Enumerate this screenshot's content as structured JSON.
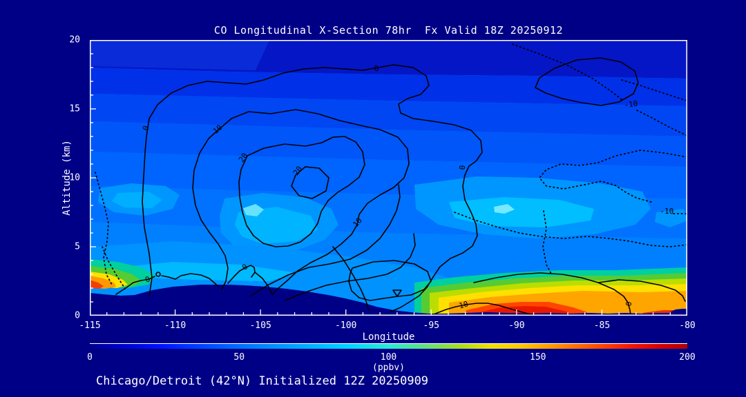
{
  "title": "CO Longitudinal X-Section 78hr  Fx Valid 18Z 20250912",
  "footer": "Chicago/Detroit (42°N) Initialized 12Z 20250909",
  "x_axis": {
    "label": "Longitude",
    "ticks": [
      "-115",
      "-110",
      "-105",
      "-100",
      "-95",
      "-90",
      "-85",
      "-80"
    ]
  },
  "y_axis": {
    "label": "Altitude (km)",
    "ticks": [
      "0",
      "5",
      "10",
      "15",
      "20"
    ]
  },
  "colorbar": {
    "ticks": [
      "0",
      "50",
      "100",
      "150",
      "200"
    ],
    "units": "(ppbv)"
  },
  "colors": {
    "background": "#000087",
    "frame": "#FFFFFF",
    "text": "#FFFFFF",
    "contour_line": "#000000"
  },
  "chart_data": {
    "type": "filled_contour_cross_section",
    "title": "CO Longitudinal X-Section 78hr  Fx Valid 18Z 20250912",
    "subtitle": "Chicago/Detroit (42°N) Initialized 12Z 20250909",
    "xlabel": "Longitude",
    "ylabel": "Altitude (km)",
    "xlim": [
      -115,
      -80
    ],
    "ylim": [
      0,
      20
    ],
    "x_major_ticks": [
      -115,
      -110,
      -105,
      -100,
      -95,
      -90,
      -85,
      -80
    ],
    "x_minor_tick_interval": 1,
    "y_major_ticks": [
      0,
      5,
      10,
      15,
      20
    ],
    "y_minor_tick_interval": 1,
    "grid": false,
    "colorbar": {
      "min": 0,
      "max": 200,
      "ticks": [
        0,
        50,
        100,
        150,
        200
      ],
      "units": "(ppbv)",
      "stops": [
        {
          "at": 0.0,
          "color": "#00008D"
        },
        {
          "at": 0.05,
          "color": "#0000C8"
        },
        {
          "at": 0.12,
          "color": "#0013FF"
        },
        {
          "at": 0.2,
          "color": "#004DFF"
        },
        {
          "at": 0.28,
          "color": "#0080FF"
        },
        {
          "at": 0.36,
          "color": "#00ABFF"
        },
        {
          "at": 0.43,
          "color": "#00D2FF"
        },
        {
          "at": 0.5,
          "color": "#2BE8D2"
        },
        {
          "at": 0.56,
          "color": "#5FE080"
        },
        {
          "at": 0.62,
          "color": "#A8DC1E"
        },
        {
          "at": 0.67,
          "color": "#F0E000"
        },
        {
          "at": 0.72,
          "color": "#FFC800"
        },
        {
          "at": 0.78,
          "color": "#FF9100"
        },
        {
          "at": 0.85,
          "color": "#FF4A00"
        },
        {
          "at": 0.91,
          "color": "#F01400"
        },
        {
          "at": 0.96,
          "color": "#CF0000"
        },
        {
          "at": 1.0,
          "color": "#AF0000"
        }
      ]
    },
    "solid_contour_levels": [
      0,
      10,
      20
    ],
    "dotted_contour_levels": [
      -10
    ],
    "contour_labels": [
      {
        "value": "0",
        "lon": -111.7,
        "alt": 13.6,
        "rot": -72
      },
      {
        "value": "0",
        "lon": -98.2,
        "alt": 17.9,
        "rot": -15
      },
      {
        "value": "0",
        "lon": -93.15,
        "alt": 10.75,
        "rot": -85
      },
      {
        "value": "0",
        "lon": -111.6,
        "alt": 2.6,
        "rot": -20
      },
      {
        "value": "0",
        "lon": -105.9,
        "alt": 3.5,
        "rot": -40
      },
      {
        "value": "0",
        "lon": -83.4,
        "alt": 0.85,
        "rot": -80
      },
      {
        "value": "10",
        "lon": -107.5,
        "alt": 13.5,
        "rot": -40
      },
      {
        "value": "10",
        "lon": -99.3,
        "alt": 6.75,
        "rot": -50
      },
      {
        "value": "10",
        "lon": -93.1,
        "alt": 0.75,
        "rot": -15
      },
      {
        "value": "20",
        "lon": -106.0,
        "alt": 11.45,
        "rot": -55
      },
      {
        "value": "20",
        "lon": -102.8,
        "alt": 10.5,
        "rot": -55
      },
      {
        "value": "-10",
        "lon": -83.3,
        "alt": 15.3,
        "rot": -8
      },
      {
        "value": "-10",
        "lon": -81.2,
        "alt": 7.55,
        "rot": 0
      }
    ],
    "terrain_profile_lon_altkm": [
      [
        -115,
        1.65
      ],
      [
        -113.5,
        1.45
      ],
      [
        -112.3,
        1.5
      ],
      [
        -111.5,
        1.85
      ],
      [
        -110,
        2.1
      ],
      [
        -108.5,
        2.25
      ],
      [
        -106,
        2.2
      ],
      [
        -104.7,
        2.1
      ],
      [
        -103.5,
        1.95
      ],
      [
        -102.2,
        1.75
      ],
      [
        -100.7,
        1.25
      ],
      [
        -99.3,
        0.65
      ],
      [
        -98.2,
        0.4
      ],
      [
        -96.8,
        0.15
      ],
      [
        -95,
        0.15
      ],
      [
        -92,
        0.2
      ],
      [
        -88,
        0.2
      ],
      [
        -84.7,
        0.2
      ],
      [
        -81.7,
        0.5
      ],
      [
        -80,
        0.4
      ]
    ],
    "features": [
      "Elevated CO anomaly plume aloft (10-20 contours) centered near 106W-101W at 8-13 km",
      "Near-surface CO maximum ~150-200 ppbv between 96W and 80W below ~2 km",
      "Secondary near-surface maximum at the western edge near 115W below ~2.5 km",
      "Dotted negative (-10) contours in the upper-right quadrant east of 90W",
      "Terrain silhouette (Rockies ~2.3 km) from 115W sloping to plains near 95W"
    ]
  }
}
